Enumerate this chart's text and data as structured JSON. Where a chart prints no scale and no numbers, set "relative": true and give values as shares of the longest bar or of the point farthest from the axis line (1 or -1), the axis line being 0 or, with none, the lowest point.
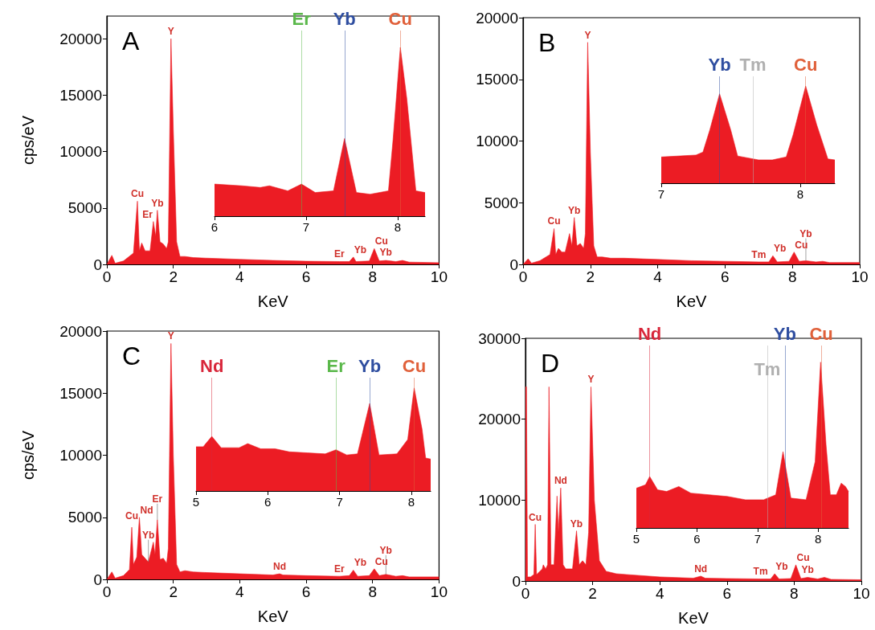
{
  "chart_data": [
    {
      "type": "area",
      "title": "A",
      "xlabel": "KeV",
      "ylabel": "cps/eV",
      "xlim": [
        0,
        10
      ],
      "xticks": [
        0,
        2,
        4,
        6,
        8,
        10
      ],
      "ylim": [
        0,
        22000
      ],
      "yticks": [
        0,
        5000,
        10000,
        15000,
        20000
      ],
      "x": [
        0,
        0.15,
        0.25,
        0.5,
        0.8,
        0.92,
        0.98,
        1.05,
        1.15,
        1.3,
        1.4,
        1.47,
        1.52,
        1.6,
        1.7,
        1.8,
        1.85,
        1.93,
        2.0,
        2.1,
        2.2,
        2.35,
        2.6,
        3,
        4,
        5,
        6,
        7,
        7.3,
        7.42,
        7.5,
        7.9,
        8.05,
        8.2,
        8.4,
        8.7,
        8.9,
        9.1,
        10
      ],
      "series": [
        {
          "color": "#ec1c24",
          "values": [
            0,
            800,
            100,
            300,
            1000,
            5600,
            1200,
            1900,
            1200,
            1200,
            3800,
            2500,
            4800,
            2000,
            1800,
            1400,
            2000,
            20000,
            12000,
            2000,
            700,
            700,
            600,
            550,
            450,
            350,
            280,
            250,
            250,
            650,
            250,
            300,
            1400,
            300,
            350,
            250,
            350,
            200,
            150
          ]
        }
      ],
      "annotations": [
        {
          "text": "Y",
          "x": 1.93,
          "y": 20000
        },
        {
          "text": "Cu",
          "x": 0.92,
          "y": 5600
        },
        {
          "text": "Er",
          "x": 1.4,
          "y": 3800
        },
        {
          "text": "Yb",
          "x": 1.52,
          "y": 4800
        },
        {
          "text": "Er",
          "x": 7,
          "y": 250
        },
        {
          "text": "Yb",
          "x": 7.42,
          "y": 650
        },
        {
          "text": "Cu",
          "x": 8.05,
          "y": 1400
        },
        {
          "text": "Yb",
          "x": 8.4,
          "y": 350
        }
      ]
    },
    {
      "type": "area",
      "relative": true,
      "tick_labels": "x",
      "xlim": [
        6,
        8.3
      ],
      "xticks": [
        6,
        7,
        8
      ],
      "x": [
        6,
        6.3,
        6.5,
        6.6,
        6.8,
        6.95,
        7.1,
        7.3,
        7.42,
        7.55,
        7.7,
        7.9,
        7.95,
        8.03,
        8.1,
        8.2,
        8.3
      ],
      "series": [
        {
          "color": "#ec1c24",
          "values": [
            0.19,
            0.18,
            0.17,
            0.18,
            0.15,
            0.19,
            0.14,
            0.15,
            0.46,
            0.14,
            0.13,
            0.15,
            0.45,
            1,
            0.7,
            0.15,
            0.14
          ]
        }
      ],
      "ref_lines": [
        {
          "axis": "x",
          "value": 6.95,
          "label": "Er",
          "color": "#5ab84a"
        },
        {
          "axis": "x",
          "value": 7.42,
          "label": "Yb",
          "color": "#2f4ea0"
        },
        {
          "axis": "x",
          "value": 8.03,
          "label": "Cu",
          "color": "#e0603a"
        }
      ]
    },
    {
      "type": "area",
      "title": "B",
      "xlabel": "KeV",
      "xlim": [
        0,
        10
      ],
      "xticks": [
        0,
        2,
        4,
        6,
        8,
        10
      ],
      "ylim": [
        0,
        20000
      ],
      "yticks": [
        0,
        5000,
        10000,
        15000,
        20000
      ],
      "x": [
        0,
        0.15,
        0.25,
        0.5,
        0.8,
        0.92,
        0.97,
        1.05,
        1.15,
        1.25,
        1.38,
        1.45,
        1.52,
        1.6,
        1.7,
        1.8,
        1.85,
        1.92,
        2.0,
        2.1,
        2.2,
        2.35,
        2.6,
        3,
        4,
        5,
        6,
        7,
        7.3,
        7.42,
        7.55,
        7.9,
        8.05,
        8.2,
        8.4,
        8.7,
        8.9,
        9.1,
        10
      ],
      "series": [
        {
          "color": "#ec1c24",
          "values": [
            0,
            450,
            100,
            300,
            800,
            2900,
            800,
            1300,
            1000,
            1000,
            2500,
            1500,
            3800,
            1500,
            1700,
            1300,
            2500,
            18000,
            9000,
            1500,
            600,
            600,
            500,
            500,
            400,
            300,
            250,
            200,
            200,
            700,
            200,
            250,
            1000,
            250,
            300,
            200,
            250,
            150,
            150
          ]
        }
      ],
      "annotations": [
        {
          "text": "Y",
          "x": 1.92,
          "y": 18000
        },
        {
          "text": "Cu",
          "x": 0.92,
          "y": 2900
        },
        {
          "text": "Yb",
          "x": 1.52,
          "y": 3800
        },
        {
          "text": "Tm",
          "x": 7,
          "y": 200
        },
        {
          "text": "Yb",
          "x": 7.42,
          "y": 700
        },
        {
          "text": "Cu",
          "x": 8.05,
          "y": 1000
        },
        {
          "text": "Yb",
          "x": 8.4,
          "y": 300
        }
      ]
    },
    {
      "type": "area",
      "relative": true,
      "tick_labels": "x",
      "xlim": [
        7,
        8.25
      ],
      "xticks": [
        7,
        8
      ],
      "x": [
        7,
        7.25,
        7.3,
        7.35,
        7.42,
        7.5,
        7.55,
        7.7,
        7.8,
        7.9,
        7.95,
        8.04,
        8.12,
        8.2,
        8.25
      ],
      "series": [
        {
          "color": "#ec1c24",
          "values": [
            0.27,
            0.29,
            0.32,
            0.55,
            0.92,
            0.55,
            0.28,
            0.24,
            0.24,
            0.27,
            0.5,
            1,
            0.6,
            0.25,
            0.24
          ]
        }
      ],
      "ref_lines": [
        {
          "axis": "x",
          "value": 7.42,
          "label": "Yb",
          "color": "#2f4ea0"
        },
        {
          "axis": "x",
          "value": 7.66,
          "label": "Tm",
          "color": "#b0b0b0"
        },
        {
          "axis": "x",
          "value": 8.04,
          "label": "Cu",
          "color": "#e0603a"
        }
      ]
    },
    {
      "type": "area",
      "title": "C",
      "xlabel": "KeV",
      "ylabel": "cps/eV",
      "xlim": [
        0,
        10
      ],
      "xticks": [
        0,
        2,
        4,
        6,
        8,
        10
      ],
      "ylim": [
        0,
        20000
      ],
      "yticks": [
        0,
        5000,
        10000,
        15000,
        20000
      ],
      "x": [
        0,
        0.15,
        0.25,
        0.5,
        0.68,
        0.75,
        0.8,
        0.9,
        0.98,
        1.05,
        1.15,
        1.25,
        1.4,
        1.45,
        1.52,
        1.6,
        1.7,
        1.8,
        1.85,
        1.93,
        2.0,
        2.1,
        2.2,
        2.35,
        2.6,
        3,
        4,
        5,
        5.2,
        5.3,
        6,
        7,
        7.3,
        7.42,
        7.55,
        7.9,
        8.05,
        8.2,
        8.4,
        8.7,
        8.9,
        9.1,
        10
      ],
      "series": [
        {
          "color": "#ec1c24",
          "values": [
            0,
            600,
            100,
            300,
            800,
            4200,
            1200,
            1800,
            5000,
            2000,
            1700,
            1400,
            3000,
            2000,
            4800,
            1600,
            1700,
            1300,
            2500,
            19000,
            10000,
            1200,
            600,
            700,
            600,
            550,
            450,
            350,
            450,
            350,
            300,
            250,
            300,
            750,
            250,
            300,
            850,
            300,
            400,
            250,
            300,
            200,
            200
          ]
        }
      ],
      "annotations": [
        {
          "text": "Y",
          "x": 1.93,
          "y": 19000
        },
        {
          "text": "Cu",
          "x": 0.75,
          "y": 4200
        },
        {
          "text": "Nd",
          "x": 0.98,
          "y": 5000
        },
        {
          "text": "Yb",
          "x": 1.25,
          "y": 1400
        },
        {
          "text": "Er",
          "x": 1.52,
          "y": 4800
        },
        {
          "text": "Nd",
          "x": 5.2,
          "y": 450
        },
        {
          "text": "Er",
          "x": 7,
          "y": 250
        },
        {
          "text": "Yb",
          "x": 7.42,
          "y": 750
        },
        {
          "text": "Cu",
          "x": 8.05,
          "y": 850
        },
        {
          "text": "Yb",
          "x": 8.4,
          "y": 400
        }
      ]
    },
    {
      "type": "area",
      "relative": true,
      "tick_labels": "x",
      "xlim": [
        5,
        8.27
      ],
      "xticks": [
        5,
        6,
        7,
        8
      ],
      "x": [
        5,
        5.1,
        5.22,
        5.35,
        5.6,
        5.72,
        5.9,
        6.1,
        6.3,
        6.55,
        6.8,
        6.95,
        7.1,
        7.25,
        7.42,
        7.55,
        7.8,
        7.95,
        8.04,
        8.15,
        8.2,
        8.27
      ],
      "series": [
        {
          "color": "#ec1c24",
          "values": [
            0.43,
            0.43,
            0.53,
            0.42,
            0.42,
            0.46,
            0.41,
            0.41,
            0.38,
            0.37,
            0.36,
            0.4,
            0.35,
            0.36,
            0.85,
            0.35,
            0.36,
            0.5,
            1,
            0.6,
            0.32,
            0.31
          ]
        }
      ],
      "ref_lines": [
        {
          "axis": "x",
          "value": 5.22,
          "label": "Nd",
          "color": "#d8263a"
        },
        {
          "axis": "x",
          "value": 6.95,
          "label": "Er",
          "color": "#5ab84a"
        },
        {
          "axis": "x",
          "value": 7.42,
          "label": "Yb",
          "color": "#2f4ea0"
        },
        {
          "axis": "x",
          "value": 8.04,
          "label": "Cu",
          "color": "#e0603a"
        }
      ]
    },
    {
      "type": "area",
      "title": "D",
      "xlabel": "KeV",
      "xlim": [
        0,
        10
      ],
      "xticks": [
        0,
        2,
        4,
        6,
        8,
        10
      ],
      "ylim": [
        0,
        30000
      ],
      "yticks": [
        0,
        10000,
        20000,
        30000
      ],
      "x": [
        0,
        0.03,
        0.06,
        0.15,
        0.25,
        0.29,
        0.33,
        0.5,
        0.53,
        0.6,
        0.66,
        0.7,
        0.76,
        0.85,
        0.94,
        0.98,
        1.05,
        1.12,
        1.2,
        1.4,
        1.52,
        1.6,
        1.7,
        1.8,
        1.88,
        1.95,
        2.05,
        2.2,
        2.4,
        2.7,
        3,
        4,
        5,
        5.22,
        5.35,
        6,
        7,
        7.3,
        7.42,
        7.55,
        7.9,
        8.05,
        8.2,
        8.4,
        8.7,
        8.9,
        9.1,
        10
      ],
      "series": [
        {
          "color": "#ec1c24",
          "values": [
            24000,
            24000,
            500,
            500,
            800,
            7000,
            800,
            1500,
            2000,
            1500,
            2000,
            24000,
            2000,
            2000,
            10500,
            6000,
            11500,
            2000,
            1500,
            1500,
            6200,
            2000,
            2500,
            2000,
            6000,
            24000,
            10000,
            2500,
            1200,
            900,
            800,
            500,
            350,
            600,
            350,
            300,
            250,
            250,
            900,
            250,
            300,
            2000,
            300,
            450,
            250,
            450,
            200,
            150
          ]
        }
      ],
      "annotations": [
        {
          "text": "Y",
          "x": 1.95,
          "y": 24000
        },
        {
          "text": "Cu",
          "x": 0.29,
          "y": 7000
        },
        {
          "text": "Nd",
          "x": 1.05,
          "y": 11500
        },
        {
          "text": "Yb",
          "x": 1.52,
          "y": 6200
        },
        {
          "text": "Nd",
          "x": 5.22,
          "y": 600
        },
        {
          "text": "Tm",
          "x": 7,
          "y": 250
        },
        {
          "text": "Yb",
          "x": 7.42,
          "y": 900
        },
        {
          "text": "Cu",
          "x": 8.05,
          "y": 2000
        },
        {
          "text": "Yb",
          "x": 8.4,
          "y": 450
        }
      ]
    },
    {
      "type": "area",
      "relative": true,
      "tick_labels": "x",
      "xlim": [
        5,
        8.5
      ],
      "xticks": [
        5,
        6,
        7,
        8
      ],
      "x": [
        5,
        5.15,
        5.22,
        5.35,
        5.5,
        5.7,
        5.9,
        6.2,
        6.5,
        6.8,
        7.1,
        7.3,
        7.42,
        7.55,
        7.8,
        7.95,
        8.04,
        8.13,
        8.2,
        8.3,
        8.38,
        8.45,
        8.5
      ],
      "series": [
        {
          "color": "#ec1c24",
          "values": [
            0.24,
            0.26,
            0.31,
            0.23,
            0.22,
            0.25,
            0.21,
            0.2,
            0.19,
            0.17,
            0.17,
            0.2,
            0.46,
            0.18,
            0.17,
            0.4,
            1,
            0.5,
            0.2,
            0.2,
            0.27,
            0.25,
            0.22
          ]
        }
      ],
      "ref_lines": [
        {
          "axis": "x",
          "value": 5.22,
          "label": "Nd",
          "color": "#d8263a"
        },
        {
          "axis": "x",
          "value": 7.16,
          "label": "Tm",
          "color": "#b0b0b0"
        },
        {
          "axis": "x",
          "value": 7.45,
          "label": "Yb",
          "color": "#2f4ea0"
        },
        {
          "axis": "x",
          "value": 8.05,
          "label": "Cu",
          "color": "#e0603a"
        }
      ]
    }
  ]
}
